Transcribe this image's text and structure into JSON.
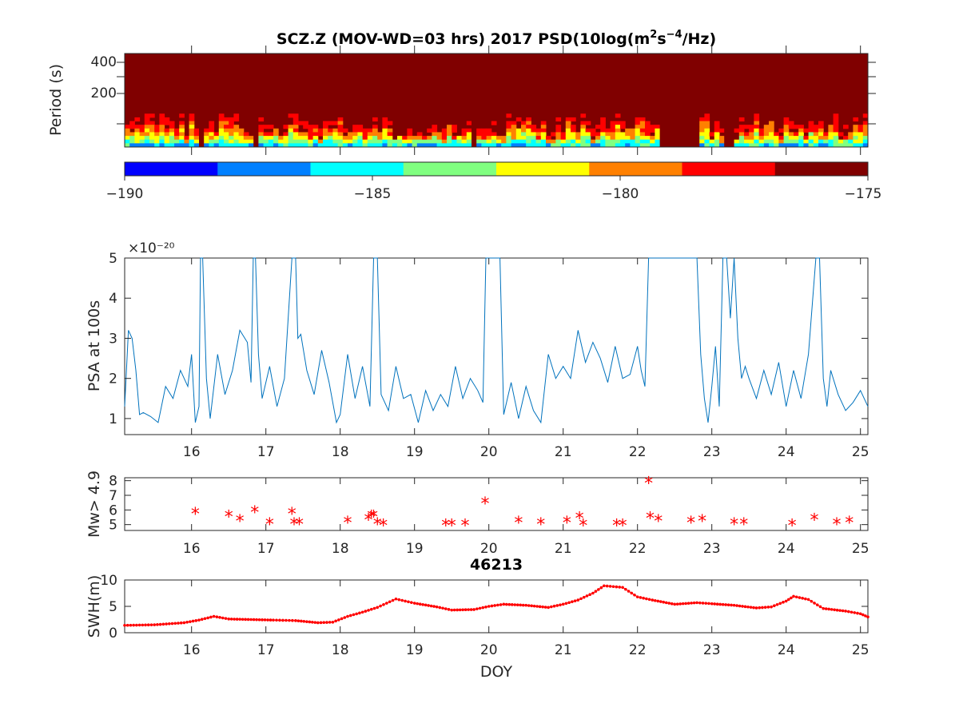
{
  "chart_data": [
    {
      "type": "heatmap",
      "title_parts": {
        "prefix": "SCZ.Z (MOV-WD=03 hrs) 2017 PSD(10log(m",
        "sup1": "2",
        "mid": "s",
        "sup2": "−4",
        "suffix": "/Hz)"
      },
      "ylabel": "Period (s)",
      "yticks": [
        "400",
        "200"
      ],
      "colorbar": {
        "ticks": [
          "−190",
          "−185",
          "−180",
          "−175"
        ],
        "range": [
          -190,
          -175
        ],
        "colors": [
          "#0000ff",
          "#0080ff",
          "#00ffff",
          "#80ff80",
          "#ffff00",
          "#ff8000",
          "#ff0000",
          "#800000"
        ]
      },
      "xlim": [
        15.1,
        25.1
      ],
      "gaps_doy": [
        [
          16.08,
          16.15
        ],
        [
          16.78,
          16.87
        ],
        [
          19.75,
          19.82
        ],
        [
          22.25,
          22.8
        ],
        [
          23.15,
          23.25
        ]
      ]
    },
    {
      "type": "line",
      "ylabel": "PSA at 100s",
      "y_exponent": "×10⁻²⁰",
      "ylim": [
        0.6,
        5
      ],
      "yticks": [
        "1",
        "2",
        "3",
        "4",
        "5"
      ],
      "xticks": [
        "16",
        "17",
        "18",
        "19",
        "20",
        "21",
        "22",
        "23",
        "24",
        "25"
      ],
      "xlim": [
        15.1,
        25.1
      ],
      "x": [
        15.1,
        15.15,
        15.2,
        15.25,
        15.3,
        15.35,
        15.45,
        15.55,
        15.65,
        15.75,
        15.85,
        15.95,
        16.0,
        16.05,
        16.1,
        16.12,
        16.15,
        16.2,
        16.25,
        16.35,
        16.45,
        16.55,
        16.65,
        16.75,
        16.8,
        16.83,
        16.86,
        16.9,
        16.95,
        17.05,
        17.15,
        17.25,
        17.35,
        17.4,
        17.43,
        17.47,
        17.55,
        17.65,
        17.75,
        17.85,
        17.95,
        18.0,
        18.1,
        18.2,
        18.3,
        18.4,
        18.45,
        18.5,
        18.55,
        18.65,
        18.75,
        18.85,
        18.95,
        19.05,
        19.15,
        19.25,
        19.35,
        19.45,
        19.55,
        19.65,
        19.75,
        19.85,
        19.92,
        19.96,
        20.15,
        20.2,
        20.3,
        20.4,
        20.5,
        20.6,
        20.7,
        20.8,
        20.9,
        21.0,
        21.1,
        21.2,
        21.3,
        21.4,
        21.5,
        21.6,
        21.7,
        21.8,
        21.9,
        22.0,
        22.05,
        22.1,
        22.15,
        22.25,
        22.8,
        22.85,
        22.9,
        22.95,
        23.0,
        23.05,
        23.1,
        23.15,
        23.2,
        23.25,
        23.3,
        23.35,
        23.4,
        23.45,
        23.5,
        23.6,
        23.7,
        23.8,
        23.9,
        24.0,
        24.1,
        24.2,
        24.3,
        24.4,
        24.45,
        24.5,
        24.55,
        24.6,
        24.7,
        24.8,
        24.9,
        25.0,
        25.1
      ],
      "values": [
        1.3,
        3.2,
        3.0,
        2.2,
        1.1,
        1.15,
        1.05,
        0.9,
        1.8,
        1.5,
        2.2,
        1.8,
        2.6,
        0.9,
        1.3,
        5.0,
        5.0,
        2.0,
        1.0,
        2.6,
        1.6,
        2.2,
        3.2,
        2.9,
        1.9,
        5.0,
        5.0,
        2.6,
        1.5,
        2.3,
        1.3,
        2.0,
        5.0,
        5.0,
        3.0,
        3.1,
        2.2,
        1.6,
        2.7,
        1.9,
        0.9,
        1.1,
        2.6,
        1.5,
        2.3,
        1.3,
        5.0,
        5.0,
        1.6,
        1.2,
        2.3,
        1.5,
        1.6,
        0.9,
        1.7,
        1.2,
        1.6,
        1.3,
        2.3,
        1.5,
        2.0,
        1.7,
        1.4,
        5.0,
        5.0,
        1.1,
        1.9,
        1.0,
        1.8,
        1.2,
        0.9,
        2.6,
        2.0,
        2.3,
        2.0,
        3.2,
        2.4,
        2.9,
        2.5,
        1.9,
        2.8,
        2.0,
        2.1,
        2.8,
        2.2,
        1.8,
        5.0,
        5.0,
        5.0,
        2.6,
        1.5,
        0.9,
        1.8,
        2.8,
        1.3,
        5.0,
        5.0,
        3.5,
        5.0,
        3.0,
        2.0,
        2.3,
        2.0,
        1.5,
        2.2,
        1.6,
        2.4,
        1.3,
        2.2,
        1.5,
        2.6,
        5.0,
        5.0,
        2.0,
        1.3,
        2.2,
        1.6,
        1.2,
        1.4,
        1.7,
        1.3
      ]
    },
    {
      "type": "scatter",
      "ylabel": "Mw> 4.9",
      "ylim": [
        4.6,
        8.2
      ],
      "yticks": [
        "5",
        "6",
        "7",
        "8"
      ],
      "xticks": [
        "16",
        "17",
        "18",
        "19",
        "20",
        "21",
        "22",
        "23",
        "24",
        "25"
      ],
      "xlim": [
        15.1,
        25.1
      ],
      "marker": "*",
      "color": "#ff0000",
      "x": [
        16.05,
        16.5,
        16.65,
        16.85,
        17.05,
        17.35,
        17.38,
        17.45,
        18.1,
        18.38,
        18.42,
        18.45,
        18.5,
        18.58,
        19.42,
        19.5,
        19.68,
        19.95,
        20.4,
        20.7,
        21.05,
        21.22,
        21.27,
        21.72,
        21.8,
        22.15,
        22.17,
        22.28,
        22.72,
        22.87,
        23.3,
        23.43,
        24.08,
        24.38,
        24.68,
        24.85
      ],
      "values": [
        5.8,
        5.6,
        5.3,
        5.9,
        5.1,
        5.8,
        5.1,
        5.1,
        5.2,
        5.4,
        5.6,
        5.6,
        5.1,
        5.0,
        5.0,
        5.0,
        5.0,
        6.5,
        5.2,
        5.1,
        5.2,
        5.5,
        5.0,
        5.0,
        5.0,
        7.9,
        5.5,
        5.3,
        5.2,
        5.3,
        5.1,
        5.1,
        5.0,
        5.4,
        5.1,
        5.2
      ]
    },
    {
      "type": "line",
      "title": "46213",
      "ylabel": "SWH(m)",
      "xlabel": "DOY",
      "ylim": [
        0,
        10
      ],
      "yticks": [
        "0",
        "5",
        "10"
      ],
      "xticks": [
        "16",
        "17",
        "18",
        "19",
        "20",
        "21",
        "22",
        "23",
        "24",
        "25"
      ],
      "xlim": [
        15.1,
        25.1
      ],
      "color": "#ff0000",
      "x": [
        15.1,
        15.5,
        15.9,
        16.1,
        16.3,
        16.5,
        16.8,
        17.1,
        17.4,
        17.7,
        17.9,
        18.1,
        18.3,
        18.5,
        18.75,
        19.0,
        19.3,
        19.5,
        19.8,
        20.0,
        20.2,
        20.5,
        20.8,
        21.0,
        21.2,
        21.4,
        21.55,
        21.8,
        22.0,
        22.2,
        22.5,
        22.8,
        23.0,
        23.3,
        23.6,
        23.8,
        24.0,
        24.1,
        24.3,
        24.5,
        24.8,
        25.0,
        25.1
      ],
      "values": [
        1.4,
        1.5,
        1.9,
        2.4,
        3.1,
        2.6,
        2.5,
        2.4,
        2.3,
        1.9,
        2.0,
        3.1,
        3.9,
        4.8,
        6.4,
        5.6,
        4.9,
        4.3,
        4.4,
        5.0,
        5.4,
        5.2,
        4.8,
        5.4,
        6.2,
        7.5,
        8.9,
        8.6,
        6.8,
        6.2,
        5.4,
        5.7,
        5.5,
        5.2,
        4.7,
        4.9,
        6.0,
        6.9,
        6.3,
        4.6,
        4.1,
        3.6,
        3.0
      ]
    }
  ]
}
